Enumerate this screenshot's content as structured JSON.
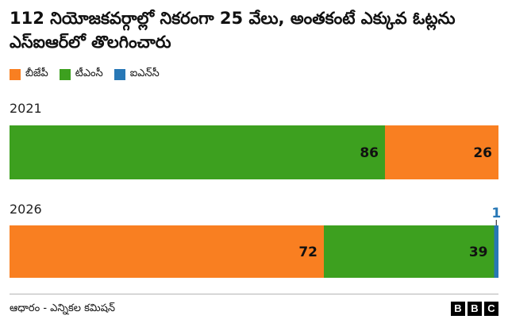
{
  "title": "112 నియోజకవర్గాల్లో నికరంగా 25 వేలు, అంతకంటే ఎక్కువ ఓట్లను ఎస్ఐఆర్‌లో తొలగించారు",
  "legend": [
    {
      "name": "బీజేపీ",
      "color": "#f97f21"
    },
    {
      "name": "టీఎంసీ",
      "color": "#3da01f"
    },
    {
      "name": "ఐఎన్‌సీ",
      "color": "#2878b6"
    }
  ],
  "chart_data": {
    "type": "bar",
    "orientation": "horizontal",
    "stacked": true,
    "grid": false,
    "legend_position": "top-left",
    "categories": [
      "2021",
      "2026"
    ],
    "series": [
      {
        "name": "బీజేపీ",
        "color": "#f97f21",
        "values": [
          26,
          72
        ]
      },
      {
        "name": "టీఎంసీ",
        "color": "#3da01f",
        "values": [
          86,
          39
        ]
      },
      {
        "name": "ఐఎన్‌సీ",
        "color": "#2878b6",
        "values": [
          0,
          1
        ]
      }
    ],
    "stack_order": [
      [
        "టీఎంసీ",
        "బీజేపీ"
      ],
      [
        "బీజేపీ",
        "టీఎంసీ",
        "ఐఎన్‌సీ"
      ]
    ],
    "xlim": [
      0,
      112
    ]
  },
  "footer": {
    "source": "ఆధారం - ఎన్నికల కమిషన్",
    "logo_letters": [
      "B",
      "B",
      "C"
    ]
  }
}
